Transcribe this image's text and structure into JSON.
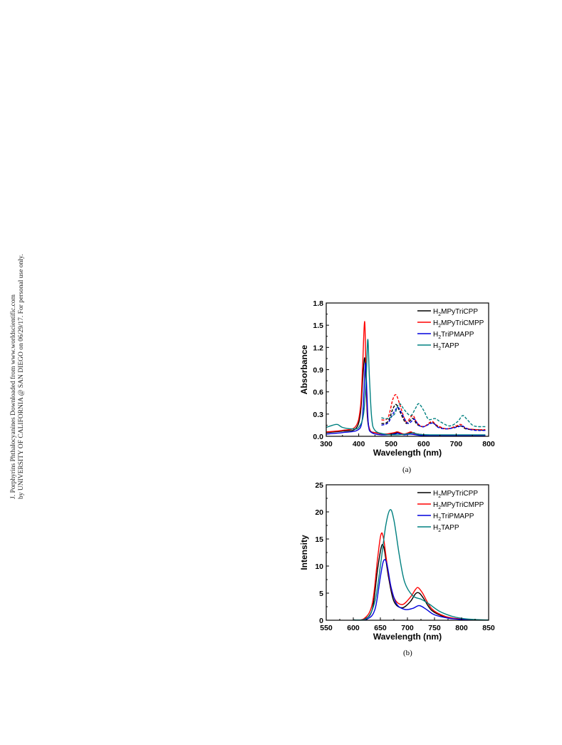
{
  "watermark": {
    "line1": "J. Porphyrins Phthalocyanines Downloaded from www.worldscientific.com",
    "line2": "by UNIVERSITY OF CALIFORNIA @ SAN DIEGO on 06/29/17. For personal use only."
  },
  "chart_data": [
    {
      "type": "line",
      "caption": "(a)",
      "xlabel": "Wavelength (nm)",
      "ylabel": "Absorbance",
      "xlim": [
        300,
        800
      ],
      "ylim": [
        0,
        1.8
      ],
      "xticks": [
        300,
        400,
        500,
        600,
        700,
        800
      ],
      "xtick_labels": [
        "300",
        "400",
        "500",
        "600",
        "700",
        "800"
      ],
      "yticks": [
        0,
        0.3,
        0.6,
        0.9,
        1.2,
        1.5,
        1.8
      ],
      "ytick_labels": [
        "0.0",
        "0.3",
        "0.6",
        "0.9",
        "1.2",
        "1.5",
        "1.8"
      ],
      "legend_position": "top-right",
      "series": [
        {
          "name": "H2MPyTriCPP",
          "legend": {
            "pre": "H",
            "sub": "2",
            "post": "MPyTriCPP"
          },
          "color": "#000000",
          "dashed": false,
          "points": [
            [
              300,
              0.05
            ],
            [
              350,
              0.07
            ],
            [
              390,
              0.1
            ],
            [
              405,
              0.3
            ],
            [
              412,
              0.75
            ],
            [
              418,
              1.06
            ],
            [
              422,
              0.8
            ],
            [
              427,
              0.25
            ],
            [
              435,
              0.08
            ],
            [
              450,
              0.05
            ],
            [
              480,
              0.03
            ],
            [
              510,
              0.04
            ],
            [
              520,
              0.05
            ],
            [
              540,
              0.03
            ],
            [
              560,
              0.05
            ],
            [
              570,
              0.04
            ],
            [
              600,
              0.02
            ],
            [
              650,
              0.01
            ],
            [
              700,
              0.01
            ],
            [
              790,
              0.01
            ]
          ]
        },
        {
          "name": "H2MPyTriCMPP",
          "legend": {
            "pre": "H",
            "sub": "2",
            "post": "MPyTriCMPP"
          },
          "color": "#ff0000",
          "dashed": false,
          "points": [
            [
              300,
              0.06
            ],
            [
              350,
              0.08
            ],
            [
              390,
              0.13
            ],
            [
              405,
              0.38
            ],
            [
              412,
              0.95
            ],
            [
              418,
              1.55
            ],
            [
              422,
              1.0
            ],
            [
              427,
              0.3
            ],
            [
              435,
              0.08
            ],
            [
              450,
              0.05
            ],
            [
              480,
              0.03
            ],
            [
              510,
              0.05
            ],
            [
              520,
              0.06
            ],
            [
              540,
              0.03
            ],
            [
              560,
              0.06
            ],
            [
              570,
              0.04
            ],
            [
              600,
              0.02
            ],
            [
              650,
              0.01
            ],
            [
              700,
              0.01
            ],
            [
              790,
              0.01
            ]
          ]
        },
        {
          "name": "H2TriPMAPP",
          "legend": {
            "pre": "H",
            "sub": "2",
            "post": "TriPMAPP"
          },
          "color": "#0000dd",
          "dashed": false,
          "points": [
            [
              300,
              0.03
            ],
            [
              350,
              0.05
            ],
            [
              395,
              0.08
            ],
            [
              410,
              0.2
            ],
            [
              416,
              0.6
            ],
            [
              421,
              0.99
            ],
            [
              425,
              0.6
            ],
            [
              430,
              0.15
            ],
            [
              440,
              0.05
            ],
            [
              470,
              0.02
            ],
            [
              510,
              0.03
            ],
            [
              520,
              0.04
            ],
            [
              540,
              0.02
            ],
            [
              560,
              0.03
            ],
            [
              600,
              0.01
            ],
            [
              700,
              0.01
            ],
            [
              790,
              0.01
            ]
          ]
        },
        {
          "name": "H2TAPP",
          "legend": {
            "pre": "H",
            "sub": "2",
            "post": "TAPP"
          },
          "color": "#008080",
          "dashed": false,
          "points": [
            [
              300,
              0.12
            ],
            [
              320,
              0.15
            ],
            [
              335,
              0.16
            ],
            [
              350,
              0.12
            ],
            [
              380,
              0.1
            ],
            [
              400,
              0.12
            ],
            [
              415,
              0.3
            ],
            [
              423,
              0.8
            ],
            [
              428,
              1.31
            ],
            [
              433,
              0.8
            ],
            [
              440,
              0.25
            ],
            [
              450,
              0.08
            ],
            [
              480,
              0.03
            ],
            [
              520,
              0.02
            ],
            [
              560,
              0.04
            ],
            [
              570,
              0.05
            ],
            [
              580,
              0.03
            ],
            [
              620,
              0.02
            ],
            [
              680,
              0.02
            ],
            [
              790,
              0.02
            ]
          ]
        },
        {
          "name": "H2MPyTriCPP (magnified)",
          "color": "#000000",
          "dashed": true,
          "points": [
            [
              470,
              0.17
            ],
            [
              490,
              0.2
            ],
            [
              505,
              0.37
            ],
            [
              515,
              0.43
            ],
            [
              525,
              0.35
            ],
            [
              545,
              0.18
            ],
            [
              560,
              0.22
            ],
            [
              568,
              0.24
            ],
            [
              580,
              0.16
            ],
            [
              600,
              0.13
            ],
            [
              625,
              0.19
            ],
            [
              640,
              0.14
            ],
            [
              670,
              0.1
            ],
            [
              700,
              0.13
            ],
            [
              715,
              0.14
            ],
            [
              730,
              0.1
            ],
            [
              760,
              0.09
            ],
            [
              790,
              0.08
            ]
          ]
        },
        {
          "name": "H2MPyTriCMPP (magnified)",
          "color": "#ff0000",
          "dashed": true,
          "points": [
            [
              470,
              0.22
            ],
            [
              490,
              0.25
            ],
            [
              505,
              0.5
            ],
            [
              515,
              0.56
            ],
            [
              525,
              0.45
            ],
            [
              545,
              0.2
            ],
            [
              560,
              0.26
            ],
            [
              568,
              0.28
            ],
            [
              580,
              0.18
            ],
            [
              600,
              0.13
            ],
            [
              625,
              0.2
            ],
            [
              640,
              0.15
            ],
            [
              670,
              0.1
            ],
            [
              700,
              0.14
            ],
            [
              715,
              0.16
            ],
            [
              730,
              0.11
            ],
            [
              760,
              0.09
            ],
            [
              790,
              0.09
            ]
          ]
        },
        {
          "name": "H2TriPMAPP (magnified)",
          "color": "#0000dd",
          "dashed": true,
          "points": [
            [
              470,
              0.15
            ],
            [
              490,
              0.18
            ],
            [
              505,
              0.3
            ],
            [
              520,
              0.39
            ],
            [
              530,
              0.33
            ],
            [
              550,
              0.18
            ],
            [
              565,
              0.21
            ],
            [
              572,
              0.23
            ],
            [
              585,
              0.15
            ],
            [
              600,
              0.13
            ],
            [
              628,
              0.18
            ],
            [
              645,
              0.12
            ],
            [
              670,
              0.1
            ],
            [
              700,
              0.12
            ],
            [
              718,
              0.14
            ],
            [
              735,
              0.1
            ],
            [
              760,
              0.08
            ],
            [
              790,
              0.08
            ]
          ]
        },
        {
          "name": "H2TAPP (magnified)",
          "color": "#008080",
          "dashed": true,
          "points": [
            [
              470,
              0.25
            ],
            [
              490,
              0.24
            ],
            [
              510,
              0.3
            ],
            [
              525,
              0.44
            ],
            [
              540,
              0.36
            ],
            [
              560,
              0.28
            ],
            [
              575,
              0.38
            ],
            [
              585,
              0.44
            ],
            [
              600,
              0.35
            ],
            [
              615,
              0.23
            ],
            [
              635,
              0.24
            ],
            [
              650,
              0.2
            ],
            [
              680,
              0.14
            ],
            [
              705,
              0.2
            ],
            [
              720,
              0.28
            ],
            [
              735,
              0.22
            ],
            [
              755,
              0.14
            ],
            [
              790,
              0.13
            ]
          ]
        }
      ]
    },
    {
      "type": "line",
      "caption": "(b)",
      "xlabel": "Wavelength (nm)",
      "ylabel": "Intensity",
      "xlim": [
        550,
        850
      ],
      "ylim": [
        0,
        25
      ],
      "xticks": [
        550,
        600,
        650,
        700,
        750,
        800,
        850
      ],
      "xtick_labels": [
        "550",
        "600",
        "650",
        "700",
        "750",
        "800",
        "850"
      ],
      "yticks": [
        0,
        5,
        10,
        15,
        20,
        25
      ],
      "ytick_labels": [
        "0",
        "5",
        "10",
        "15",
        "20",
        "25"
      ],
      "legend_position": "top-right",
      "series": [
        {
          "name": "H2MPyTriCPP",
          "legend": {
            "pre": "H",
            "sub": "2",
            "post": "MPyTriCPP"
          },
          "color": "#000000",
          "dashed": false,
          "points": [
            [
              600,
              0.05
            ],
            [
              620,
              0.2
            ],
            [
              635,
              2.0
            ],
            [
              645,
              9.5
            ],
            [
              652,
              13.6
            ],
            [
              657,
              13.2
            ],
            [
              665,
              8.0
            ],
            [
              675,
              3.5
            ],
            [
              690,
              2.3
            ],
            [
              705,
              3.4
            ],
            [
              715,
              4.9
            ],
            [
              722,
              5.0
            ],
            [
              730,
              4.0
            ],
            [
              745,
              1.8
            ],
            [
              770,
              0.6
            ],
            [
              800,
              0.2
            ],
            [
              830,
              0.05
            ]
          ]
        },
        {
          "name": "H2MPyTriCMPP",
          "legend": {
            "pre": "H",
            "sub": "2",
            "post": "MPyTriCMPP"
          },
          "color": "#ff0000",
          "dashed": false,
          "points": [
            [
              600,
              0.05
            ],
            [
              620,
              0.3
            ],
            [
              635,
              3.0
            ],
            [
              645,
              11.5
            ],
            [
              651,
              15.8
            ],
            [
              656,
              15.0
            ],
            [
              665,
              8.5
            ],
            [
              675,
              4.2
            ],
            [
              690,
              2.9
            ],
            [
              705,
              4.2
            ],
            [
              715,
              5.7
            ],
            [
              720,
              6.0
            ],
            [
              728,
              5.0
            ],
            [
              745,
              2.1
            ],
            [
              770,
              0.7
            ],
            [
              800,
              0.2
            ],
            [
              830,
              0.05
            ]
          ]
        },
        {
          "name": "H2TriPMAPP",
          "legend": {
            "pre": "H",
            "sub": "2",
            "post": "TriPMAPP"
          },
          "color": "#0000dd",
          "dashed": false,
          "points": [
            [
              600,
              0.04
            ],
            [
              625,
              0.2
            ],
            [
              640,
              2.0
            ],
            [
              650,
              8.0
            ],
            [
              656,
              11.0
            ],
            [
              662,
              10.4
            ],
            [
              670,
              6.0
            ],
            [
              680,
              3.0
            ],
            [
              695,
              2.0
            ],
            [
              710,
              2.2
            ],
            [
              722,
              2.7
            ],
            [
              735,
              2.0
            ],
            [
              750,
              1.0
            ],
            [
              775,
              0.4
            ],
            [
              800,
              0.15
            ],
            [
              830,
              0.05
            ]
          ]
        },
        {
          "name": "H2TAPP",
          "legend": {
            "pre": "H",
            "sub": "2",
            "post": "TAPP"
          },
          "color": "#008080",
          "dashed": false,
          "points": [
            [
              600,
              0.05
            ],
            [
              625,
              0.4
            ],
            [
              640,
              3.5
            ],
            [
              650,
              10.0
            ],
            [
              660,
              17.5
            ],
            [
              668,
              20.4
            ],
            [
              675,
              18.5
            ],
            [
              685,
              12.0
            ],
            [
              695,
              7.0
            ],
            [
              710,
              4.5
            ],
            [
              725,
              3.9
            ],
            [
              740,
              3.0
            ],
            [
              760,
              1.6
            ],
            [
              780,
              0.8
            ],
            [
              800,
              0.35
            ],
            [
              830,
              0.1
            ],
            [
              850,
              0.05
            ]
          ]
        }
      ]
    }
  ]
}
